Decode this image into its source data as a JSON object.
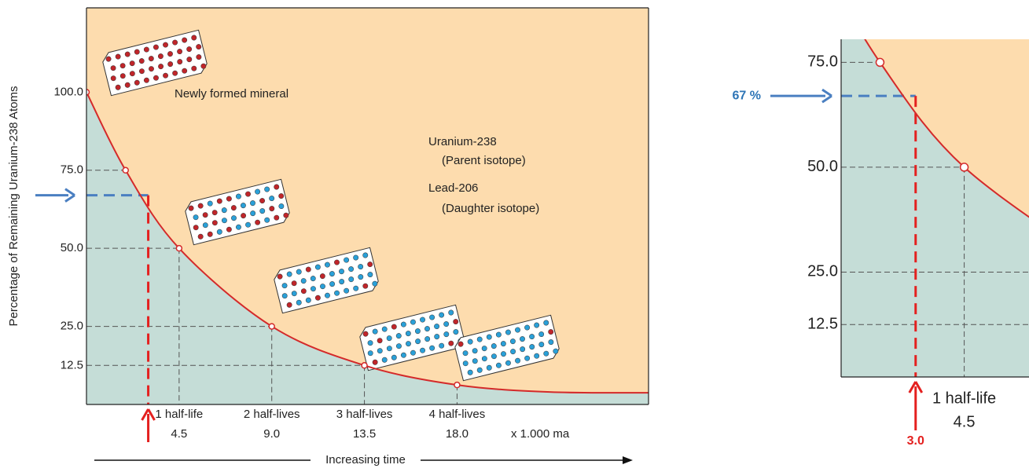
{
  "chart_data": [
    {
      "type": "line",
      "y_label": "Percentage of Remaining Uranium-238 Atoms",
      "x_label": "Increasing time",
      "x_unit_note": "x 1.000 ma",
      "xlim": [
        0,
        27.3
      ],
      "ylim": [
        0,
        127
      ],
      "yticks": [
        {
          "value": 100,
          "label": "100.0"
        },
        {
          "value": 75,
          "label": "75.0"
        },
        {
          "value": 50,
          "label": "50.0"
        },
        {
          "value": 25,
          "label": "25.0"
        },
        12.5
      ],
      "xticks": [
        4.5,
        {
          "value": 9,
          "label": "9.0"
        },
        13.5,
        {
          "value": 18,
          "label": "18.0"
        }
      ],
      "xtick_names": [
        "1 half-life",
        "2 half-lives",
        "3 half-lives",
        "4 half-lives"
      ],
      "fill_above": "#fddcae",
      "fill_below": "#c5ddd7",
      "series": [
        {
          "color": "#d42a2a",
          "x": [
            0,
            1.9,
            4.5,
            9,
            13.5,
            18,
            22.5,
            27.3
          ],
          "values": [
            100,
            75,
            50,
            25,
            12.5,
            6.25,
            4,
            3.75
          ]
        }
      ],
      "annotations": [
        "Newly formed mineral",
        "Uranium-238",
        "(Parent isotope)",
        "Lead-206",
        "(Daughter isotope)"
      ],
      "marker": {
        "x": 3.0,
        "y": 67
      }
    },
    {
      "type": "line",
      "xlim": [
        0.7,
        6.5
      ],
      "ylim": [
        0,
        80.5
      ],
      "yticks": [
        {
          "value": 75,
          "label": "75.0"
        },
        {
          "value": 50,
          "label": "50.0"
        },
        {
          "value": 25,
          "label": "25.0"
        },
        12.5
      ],
      "xticks": [
        4.5
      ],
      "xtick_names": [
        "1 half-life"
      ],
      "fill_above": "#fddcae",
      "fill_below": "#c5ddd7",
      "series": [
        {
          "color": "#d42a2a",
          "x": [
            0,
            1.9,
            4.5,
            9
          ],
          "values": [
            100,
            75,
            50,
            25
          ]
        }
      ],
      "marker": {
        "x": 3.0,
        "y": 67,
        "x_label": "3.0",
        "y_label": "67 %"
      }
    }
  ]
}
